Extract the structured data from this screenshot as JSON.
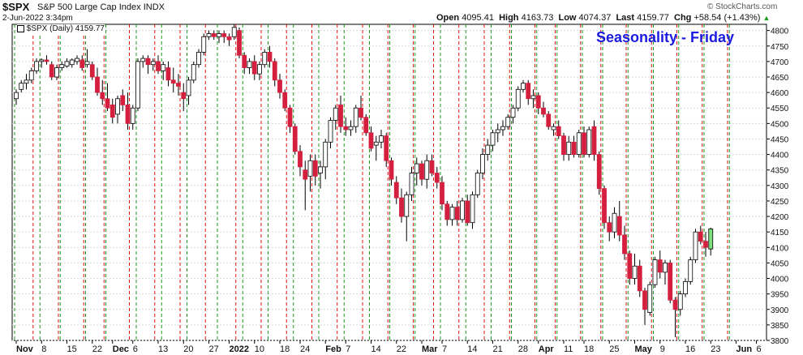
{
  "header": {
    "symbol": "$SPX",
    "name": "S&P 500 Large Cap Index",
    "exchange": "INDX",
    "datetime": "2-Jun-2022 3:34pm",
    "open_label": "Open",
    "open": "4095.41",
    "high_label": "High",
    "high": "4163.73",
    "low_label": "Low",
    "low": "4074.37",
    "last_label": "Last",
    "last": "4159.77",
    "chg_label": "Chg",
    "chg": "+58.54 (+1.43%)",
    "watermark": "© StockCharts.com"
  },
  "legend": {
    "text": "$SPX (Daily) 4159.77"
  },
  "annotation": {
    "title": "Seasonality - Friday",
    "color": "#1a1ae0"
  },
  "colors": {
    "up": "#ffffff",
    "down": "#d41f3f",
    "last_up": "#7ee07e",
    "green_line": "#1a9a1a",
    "red_line": "#e01010",
    "grid": "#d9d9d9"
  },
  "chart_data": {
    "type": "candlestick",
    "title": "Seasonality - Friday",
    "ylim": [
      3800,
      4820
    ],
    "yticks": [
      3800,
      3850,
      3900,
      3950,
      4000,
      4050,
      4100,
      4150,
      4200,
      4250,
      4300,
      4350,
      4400,
      4450,
      4500,
      4550,
      4600,
      4650,
      4700,
      4750,
      4800
    ],
    "xtick_labels": [
      {
        "label": "Nov",
        "bar": 0
      },
      {
        "label": "8",
        "bar": 5
      },
      {
        "label": "15",
        "bar": 10
      },
      {
        "label": "22",
        "bar": 15
      },
      {
        "label": "Dec",
        "bar": 19
      },
      {
        "label": "6",
        "bar": 23
      },
      {
        "label": "13",
        "bar": 28
      },
      {
        "label": "20",
        "bar": 33
      },
      {
        "label": "27",
        "bar": 38
      },
      {
        "label": "2022",
        "bar": 42
      },
      {
        "label": "10",
        "bar": 47
      },
      {
        "label": "18",
        "bar": 52
      },
      {
        "label": "24",
        "bar": 56
      },
      {
        "label": "Feb",
        "bar": 61
      },
      {
        "label": "7",
        "bar": 65
      },
      {
        "label": "14",
        "bar": 70
      },
      {
        "label": "22",
        "bar": 75
      },
      {
        "label": "Mar",
        "bar": 80
      },
      {
        "label": "7",
        "bar": 84
      },
      {
        "label": "14",
        "bar": 89
      },
      {
        "label": "21",
        "bar": 94
      },
      {
        "label": "28",
        "bar": 99
      },
      {
        "label": "Apr",
        "bar": 103
      },
      {
        "label": "11",
        "bar": 108
      },
      {
        "label": "18",
        "bar": 112
      },
      {
        "label": "25",
        "bar": 117
      },
      {
        "label": "May",
        "bar": 122
      },
      {
        "label": "9",
        "bar": 127
      },
      {
        "label": "16",
        "bar": 132
      },
      {
        "label": "23",
        "bar": 137
      },
      {
        "label": "Jun",
        "bar": 142
      },
      {
        "label": "6",
        "bar": 146
      }
    ],
    "green_lines": [
      0,
      5,
      9,
      14,
      18,
      24,
      29,
      34,
      40,
      45,
      50,
      55,
      60,
      65,
      70,
      74,
      79,
      84,
      89,
      94,
      98,
      103,
      107,
      112,
      116,
      121,
      126,
      131,
      136,
      141
    ],
    "red_lines": [
      3,
      8,
      13,
      17,
      22,
      27,
      32,
      37,
      43,
      48,
      53,
      58,
      63,
      68,
      73,
      78,
      82,
      87,
      92,
      97,
      102,
      106,
      111,
      115,
      120,
      125,
      130,
      135,
      140
    ],
    "candles": [
      [
        4580,
        4610,
        4560,
        4600
      ],
      [
        4610,
        4640,
        4600,
        4630
      ],
      [
        4630,
        4660,
        4610,
        4640
      ],
      [
        4640,
        4680,
        4630,
        4670
      ],
      [
        4670,
        4710,
        4660,
        4700
      ],
      [
        4700,
        4710,
        4680,
        4705
      ],
      [
        4705,
        4720,
        4690,
        4700
      ],
      [
        4690,
        4700,
        4640,
        4650
      ],
      [
        4650,
        4690,
        4640,
        4680
      ],
      [
        4680,
        4700,
        4670,
        4690
      ],
      [
        4685,
        4710,
        4680,
        4700
      ],
      [
        4690,
        4710,
        4680,
        4705
      ],
      [
        4700,
        4720,
        4690,
        4710
      ],
      [
        4705,
        4720,
        4670,
        4680
      ],
      [
        4690,
        4740,
        4680,
        4700
      ],
      [
        4690,
        4700,
        4640,
        4650
      ],
      [
        4650,
        4680,
        4590,
        4600
      ],
      [
        4600,
        4640,
        4560,
        4580
      ],
      [
        4580,
        4630,
        4540,
        4550
      ],
      [
        4560,
        4580,
        4500,
        4520
      ],
      [
        4530,
        4590,
        4500,
        4580
      ],
      [
        4590,
        4610,
        4540,
        4560
      ],
      [
        4560,
        4600,
        4480,
        4500
      ],
      [
        4500,
        4560,
        4480,
        4550
      ],
      [
        4550,
        4710,
        4540,
        4700
      ],
      [
        4700,
        4720,
        4680,
        4710
      ],
      [
        4710,
        4720,
        4660,
        4690
      ],
      [
        4690,
        4710,
        4670,
        4700
      ],
      [
        4700,
        4720,
        4660,
        4670
      ],
      [
        4670,
        4700,
        4640,
        4690
      ],
      [
        4680,
        4700,
        4620,
        4640
      ],
      [
        4640,
        4680,
        4600,
        4630
      ],
      [
        4630,
        4660,
        4590,
        4620
      ],
      [
        4600,
        4630,
        4540,
        4580
      ],
      [
        4590,
        4650,
        4560,
        4640
      ],
      [
        4640,
        4700,
        4630,
        4690
      ],
      [
        4690,
        4740,
        4680,
        4730
      ],
      [
        4730,
        4790,
        4720,
        4780
      ],
      [
        4780,
        4800,
        4770,
        4790
      ],
      [
        4790,
        4800,
        4770,
        4780
      ],
      [
        4780,
        4800,
        4760,
        4790
      ],
      [
        4790,
        4800,
        4760,
        4780
      ],
      [
        4780,
        4790,
        4750,
        4770
      ],
      [
        4780,
        4820,
        4770,
        4810
      ],
      [
        4800,
        4810,
        4710,
        4720
      ],
      [
        4720,
        4730,
        4660,
        4680
      ],
      [
        4680,
        4710,
        4660,
        4700
      ],
      [
        4700,
        4720,
        4640,
        4660
      ],
      [
        4660,
        4700,
        4640,
        4690
      ],
      [
        4690,
        4740,
        4680,
        4730
      ],
      [
        4730,
        4750,
        4680,
        4700
      ],
      [
        4700,
        4710,
        4620,
        4640
      ],
      [
        4640,
        4660,
        4580,
        4600
      ],
      [
        4600,
        4610,
        4540,
        4550
      ],
      [
        4550,
        4560,
        4470,
        4490
      ],
      [
        4490,
        4500,
        4400,
        4410
      ],
      [
        4410,
        4430,
        4330,
        4360
      ],
      [
        4350,
        4380,
        4220,
        4320
      ],
      [
        4330,
        4400,
        4280,
        4380
      ],
      [
        4380,
        4400,
        4300,
        4330
      ],
      [
        4340,
        4380,
        4290,
        4360
      ],
      [
        4360,
        4450,
        4320,
        4440
      ],
      [
        4440,
        4520,
        4420,
        4510
      ],
      [
        4510,
        4560,
        4480,
        4550
      ],
      [
        4560,
        4590,
        4470,
        4490
      ],
      [
        4490,
        4520,
        4460,
        4480
      ],
      [
        4480,
        4510,
        4460,
        4490
      ],
      [
        4490,
        4560,
        4470,
        4550
      ],
      [
        4550,
        4590,
        4510,
        4520
      ],
      [
        4520,
        4530,
        4460,
        4470
      ],
      [
        4470,
        4490,
        4410,
        4420
      ],
      [
        4430,
        4460,
        4380,
        4440
      ],
      [
        4440,
        4480,
        4420,
        4460
      ],
      [
        4460,
        4470,
        4360,
        4380
      ],
      [
        4380,
        4390,
        4300,
        4320
      ],
      [
        4310,
        4330,
        4240,
        4260
      ],
      [
        4260,
        4290,
        4180,
        4200
      ],
      [
        4200,
        4280,
        4120,
        4270
      ],
      [
        4270,
        4360,
        4250,
        4340
      ],
      [
        4340,
        4390,
        4300,
        4370
      ],
      [
        4370,
        4380,
        4300,
        4320
      ],
      [
        4320,
        4400,
        4290,
        4380
      ],
      [
        4380,
        4400,
        4330,
        4340
      ],
      [
        4340,
        4360,
        4290,
        4310
      ],
      [
        4310,
        4330,
        4220,
        4240
      ],
      [
        4240,
        4250,
        4170,
        4190
      ],
      [
        4190,
        4240,
        4170,
        4230
      ],
      [
        4230,
        4250,
        4170,
        4190
      ],
      [
        4190,
        4260,
        4180,
        4250
      ],
      [
        4250,
        4270,
        4170,
        4180
      ],
      [
        4180,
        4280,
        4160,
        4270
      ],
      [
        4270,
        4350,
        4260,
        4340
      ],
      [
        4340,
        4420,
        4320,
        4400
      ],
      [
        4400,
        4450,
        4380,
        4430
      ],
      [
        4430,
        4480,
        4410,
        4470
      ],
      [
        4470,
        4500,
        4440,
        4480
      ],
      [
        4480,
        4510,
        4460,
        4490
      ],
      [
        4490,
        4530,
        4480,
        4520
      ],
      [
        4520,
        4560,
        4500,
        4550
      ],
      [
        4550,
        4620,
        4540,
        4610
      ],
      [
        4610,
        4640,
        4600,
        4630
      ],
      [
        4630,
        4640,
        4560,
        4580
      ],
      [
        4580,
        4610,
        4550,
        4590
      ],
      [
        4590,
        4600,
        4530,
        4550
      ],
      [
        4550,
        4570,
        4520,
        4530
      ],
      [
        4530,
        4540,
        4480,
        4490
      ],
      [
        4480,
        4500,
        4460,
        4490
      ],
      [
        4490,
        4510,
        4450,
        4460
      ],
      [
        4460,
        4470,
        4380,
        4400
      ],
      [
        4400,
        4460,
        4380,
        4440
      ],
      [
        4440,
        4460,
        4390,
        4400
      ],
      [
        4400,
        4480,
        4390,
        4470
      ],
      [
        4470,
        4490,
        4390,
        4400
      ],
      [
        4400,
        4490,
        4390,
        4480
      ],
      [
        4490,
        4510,
        4380,
        4400
      ],
      [
        4400,
        4410,
        4270,
        4290
      ],
      [
        4290,
        4300,
        4160,
        4180
      ],
      [
        4180,
        4200,
        4120,
        4150
      ],
      [
        4150,
        4230,
        4130,
        4210
      ],
      [
        4200,
        4250,
        4120,
        4140
      ],
      [
        4140,
        4170,
        4060,
        4080
      ],
      [
        4080,
        4090,
        3980,
        4000
      ],
      [
        4000,
        4080,
        3980,
        4040
      ],
      [
        4040,
        4060,
        3940,
        3960
      ],
      [
        3960,
        3970,
        3850,
        3900
      ],
      [
        3890,
        3990,
        3880,
        3980
      ],
      [
        3980,
        4070,
        3970,
        4060
      ],
      [
        4060,
        4090,
        4000,
        4020
      ],
      [
        4020,
        4060,
        3980,
        4050
      ],
      [
        4050,
        4060,
        3920,
        3930
      ],
      [
        3930,
        3940,
        3810,
        3900
      ],
      [
        3900,
        3960,
        3880,
        3950
      ],
      [
        3950,
        4000,
        3940,
        3990
      ],
      [
        3990,
        4070,
        3980,
        4060
      ],
      [
        4060,
        4160,
        4050,
        4150
      ],
      [
        4150,
        4170,
        4110,
        4120
      ],
      [
        4120,
        4150,
        4070,
        4100
      ],
      [
        4095,
        4164,
        4074,
        4160
      ]
    ]
  }
}
